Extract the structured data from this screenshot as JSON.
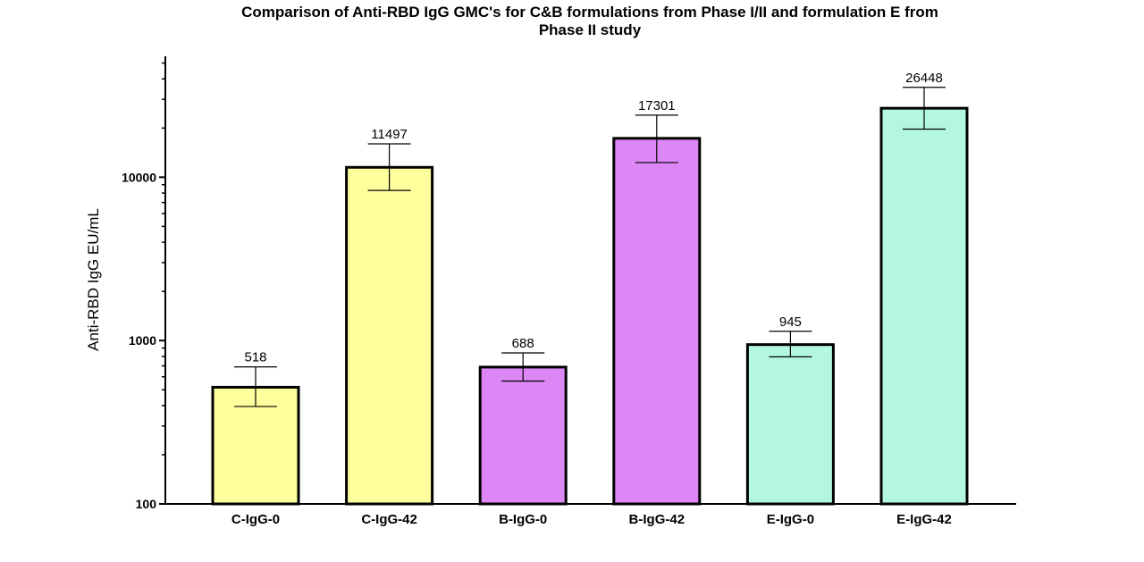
{
  "chart_data": {
    "type": "bar",
    "title_line1": "Comparison of Anti-RBD IgG GMC's for C&B formulations from  Phase  I/II and formulation  E from",
    "title_line2": "Phase  II study",
    "xlabel": "",
    "ylabel": "Anti-RBD IgG EU/mL",
    "yscale": "log",
    "ylim": [
      100,
      55000
    ],
    "yticks": [
      100,
      1000,
      10000
    ],
    "ytick_labels": [
      "100",
      "1000",
      "10000"
    ],
    "categories": [
      "C-IgG-0",
      "C-IgG-42",
      "B-IgG-0",
      "B-IgG-42",
      "E-IgG-0",
      "E-IgG-42"
    ],
    "values": [
      518,
      11497,
      688,
      17301,
      945,
      26448
    ],
    "value_labels": [
      "518",
      "11497",
      "688",
      "17301",
      "945",
      "26448"
    ],
    "error_upper": [
      690,
      16000,
      840,
      24000,
      1140,
      35500
    ],
    "error_lower": [
      395,
      8300,
      565,
      12300,
      795,
      19700
    ],
    "colors": [
      "#ffff9e",
      "#ffff9e",
      "#dd86f5",
      "#dd86f5",
      "#b3f7de",
      "#b3f7de"
    ],
    "grid": false,
    "legend": "none"
  }
}
